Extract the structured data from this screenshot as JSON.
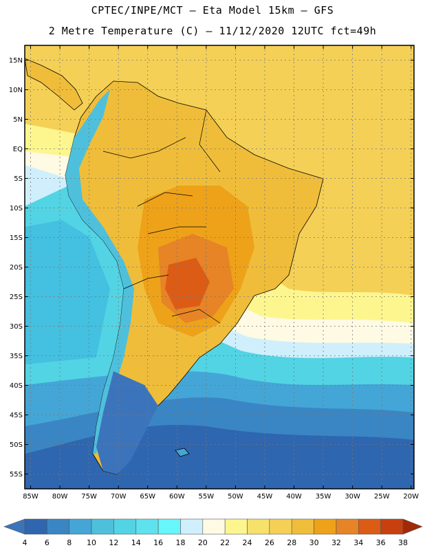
{
  "title_line1": "CPTEC/INPE/MCT –  Eta Model 15km – GFS",
  "title_line2": "2 Metre Temperature (C) – 11/12/2020 12UTC fct=49h",
  "lat_labels": [
    "15N",
    "10N",
    "5N",
    "EQ",
    "5S",
    "10S",
    "15S",
    "20S",
    "25S",
    "30S",
    "35S",
    "40S",
    "45S",
    "50S",
    "55S"
  ],
  "lat_values": [
    15,
    10,
    5,
    0,
    -5,
    -10,
    -15,
    -20,
    -25,
    -30,
    -35,
    -40,
    -45,
    -50,
    -55
  ],
  "lon_labels": [
    "85W",
    "80W",
    "75W",
    "70W",
    "65W",
    "60W",
    "55W",
    "50W",
    "45W",
    "40W",
    "35W",
    "30W",
    "25W",
    "20W"
  ],
  "lon_values": [
    -85,
    -80,
    -75,
    -70,
    -65,
    -60,
    -55,
    -50,
    -45,
    -40,
    -35,
    -30,
    -25,
    -20
  ],
  "map_extent": {
    "lon_min": -86,
    "lon_max": -19.5,
    "lat_min": -57.5,
    "lat_max": 17.5
  },
  "colorbar": {
    "labels": [
      "4",
      "6",
      "8",
      "10",
      "12",
      "14",
      "16",
      "18",
      "20",
      "22",
      "24",
      "26",
      "28",
      "30",
      "32",
      "34",
      "36",
      "38"
    ],
    "colors": [
      "#3c74bc",
      "#2f66b0",
      "#3a86c4",
      "#44a6d6",
      "#4ec0dc",
      "#52d4e4",
      "#5ee2ee",
      "#66f6fc",
      "#cfeffc",
      "#fefae4",
      "#fdf68f",
      "#f6e26a",
      "#f5d056",
      "#efbd3a",
      "#eda21a",
      "#e68426",
      "#dc5c16",
      "#c8400e",
      "#a02a08"
    ]
  },
  "regions": [
    {
      "name": "far-south-ocean",
      "color": "#2f66b0"
    },
    {
      "name": "south-ocean",
      "color": "#3a86c4"
    },
    {
      "name": "mid-south-ocean",
      "color": "#44a6d6"
    },
    {
      "name": "ocean-cyan",
      "color": "#52d4e4"
    },
    {
      "name": "atlantic-light",
      "color": "#cfeffc"
    },
    {
      "name": "atlantic-cream",
      "color": "#fefae4"
    },
    {
      "name": "tropical-yellow",
      "color": "#fdf68f"
    },
    {
      "name": "tropical-gold",
      "color": "#f5d056"
    },
    {
      "name": "land-warm",
      "color": "#efbd3a"
    },
    {
      "name": "land-hot",
      "color": "#eda21a"
    },
    {
      "name": "land-hotter",
      "color": "#e68426"
    },
    {
      "name": "land-hottest",
      "color": "#dc5c16"
    },
    {
      "name": "andes-cold",
      "color": "#4ec0dc"
    },
    {
      "name": "patagonia-cold",
      "color": "#3c74bc"
    }
  ]
}
